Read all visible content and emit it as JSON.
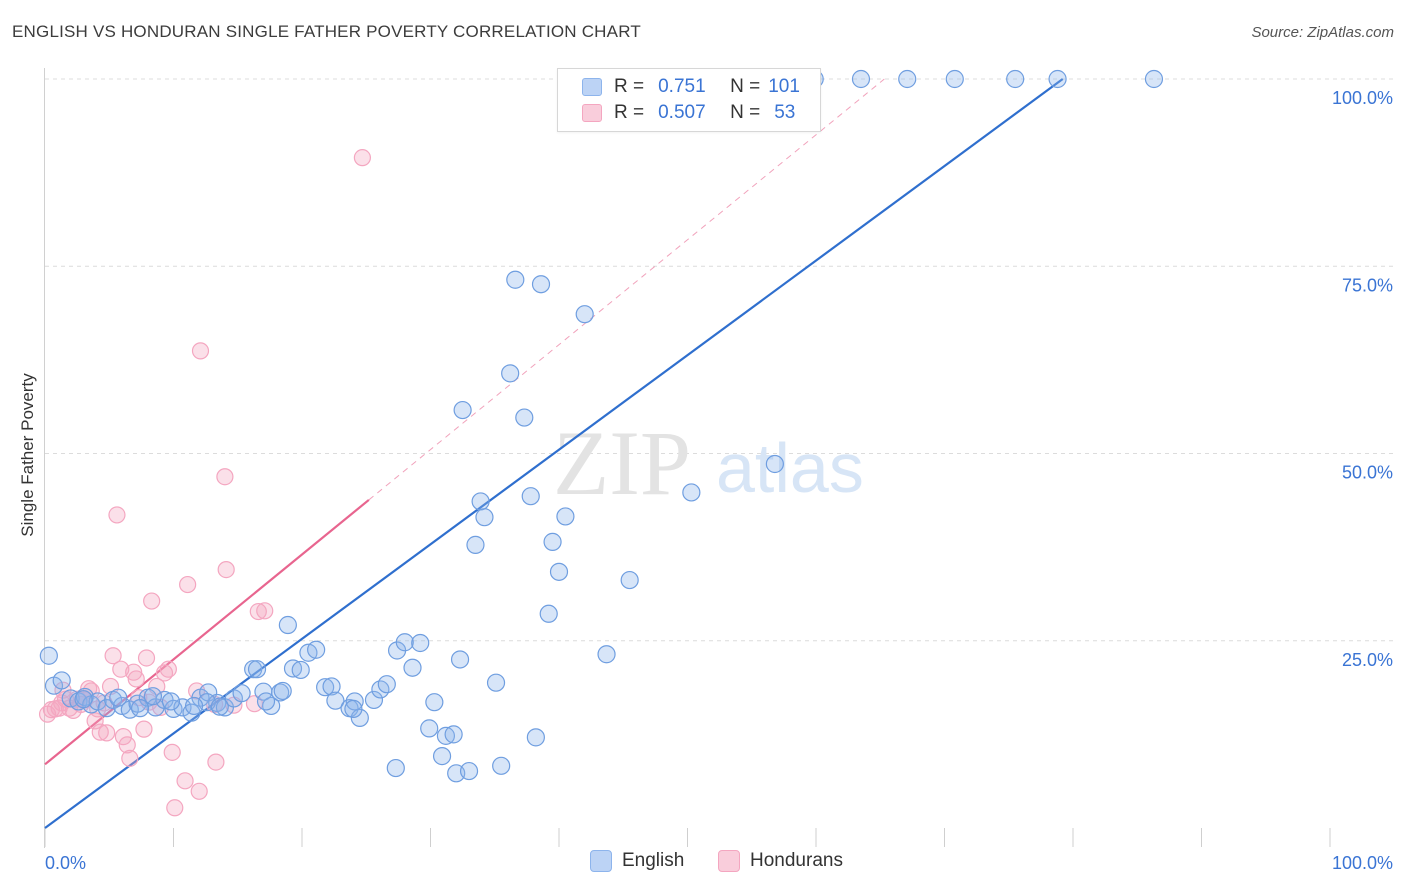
{
  "header": {
    "title": "ENGLISH VS HONDURAN SINGLE FATHER POVERTY CORRELATION CHART",
    "source": "Source: ZipAtlas.com"
  },
  "watermark": {
    "zip": "ZIP",
    "atlas": "atlas"
  },
  "colors": {
    "english": "#8db4ec",
    "english_line": "#2f6fce",
    "hondurans": "#f4a6c0",
    "hondurans_line": "#e8658f",
    "axis_label": "#3a74d4",
    "grid": "#dcdcdc"
  },
  "legend": {
    "rows": [
      {
        "r_label": "R =",
        "r_value": "0.751",
        "n_label": "N =",
        "n_value": "101"
      },
      {
        "r_label": "R =",
        "r_value": "0.507",
        "n_label": "N =",
        "n_value": "53"
      }
    ],
    "bottom": [
      "English",
      "Hondurans"
    ]
  },
  "chart_data": {
    "type": "scatter",
    "title": "ENGLISH VS HONDURAN SINGLE FATHER POVERTY CORRELATION CHART",
    "xlabel": "",
    "ylabel": "Single Father Poverty",
    "xlim": [
      0,
      100
    ],
    "ylim": [
      0,
      100
    ],
    "x_tick_labels": [
      "0.0%",
      "100.0%"
    ],
    "y_tick_labels": [
      "25.0%",
      "50.0%",
      "75.0%",
      "100.0%"
    ],
    "y_ticks": [
      25,
      50,
      75,
      100
    ],
    "grid": true,
    "legend_position": "top-center",
    "series": [
      {
        "name": "English",
        "stats": {
          "R": 0.751,
          "N": 101
        },
        "trend": {
          "x": [
            0,
            79.2
          ],
          "y": [
            0,
            100
          ]
        },
        "points": [
          [
            0.3,
            23
          ],
          [
            0.7,
            19
          ],
          [
            1.3,
            19.7
          ],
          [
            2.0,
            17.3
          ],
          [
            2.6,
            16.9
          ],
          [
            3.1,
            17.5
          ],
          [
            3.6,
            16.5
          ],
          [
            4.1,
            16.9
          ],
          [
            4.8,
            16.0
          ],
          [
            5.3,
            17.1
          ],
          [
            6.0,
            16.3
          ],
          [
            6.6,
            15.8
          ],
          [
            7.2,
            16.6
          ],
          [
            8.0,
            17.4
          ],
          [
            8.6,
            16.1
          ],
          [
            9.3,
            17.1
          ],
          [
            10.0,
            15.9
          ],
          [
            10.7,
            16.1
          ],
          [
            11.4,
            15.4
          ],
          [
            12.1,
            17.4
          ],
          [
            12.7,
            18.1
          ],
          [
            13.4,
            16.7
          ],
          [
            14.0,
            16.1
          ],
          [
            14.7,
            17.3
          ],
          [
            15.3,
            18.0
          ],
          [
            16.2,
            21.2
          ],
          [
            17.0,
            18.2
          ],
          [
            17.6,
            16.3
          ],
          [
            18.3,
            18.1
          ],
          [
            18.9,
            27.1
          ],
          [
            19.3,
            21.3
          ],
          [
            19.9,
            21.1
          ],
          [
            20.5,
            23.4
          ],
          [
            21.1,
            23.8
          ],
          [
            21.8,
            18.8
          ],
          [
            22.3,
            18.9
          ],
          [
            22.6,
            17.0
          ],
          [
            23.7,
            16.0
          ],
          [
            24.5,
            14.7
          ],
          [
            24.1,
            16.9
          ],
          [
            25.6,
            17.1
          ],
          [
            26.1,
            18.5
          ],
          [
            26.6,
            19.2
          ],
          [
            27.3,
            8.0
          ],
          [
            27.4,
            23.7
          ],
          [
            28.0,
            24.8
          ],
          [
            28.6,
            21.4
          ],
          [
            29.2,
            24.7
          ],
          [
            29.9,
            13.3
          ],
          [
            30.3,
            16.8
          ],
          [
            30.9,
            9.6
          ],
          [
            31.2,
            12.3
          ],
          [
            31.8,
            12.5
          ],
          [
            32.0,
            7.3
          ],
          [
            32.3,
            22.5
          ],
          [
            32.5,
            55.8
          ],
          [
            33.0,
            7.6
          ],
          [
            33.5,
            37.8
          ],
          [
            33.9,
            43.6
          ],
          [
            34.2,
            41.5
          ],
          [
            35.1,
            19.4
          ],
          [
            35.5,
            8.3
          ],
          [
            36.2,
            60.7
          ],
          [
            36.6,
            73.2
          ],
          [
            37.3,
            54.8
          ],
          [
            37.8,
            44.3
          ],
          [
            38.2,
            12.1
          ],
          [
            38.6,
            72.6
          ],
          [
            39.2,
            28.6
          ],
          [
            39.5,
            38.2
          ],
          [
            40.0,
            34.2
          ],
          [
            40.5,
            41.6
          ],
          [
            42.0,
            68.6
          ],
          [
            42.5,
            100
          ],
          [
            43.7,
            23.2
          ],
          [
            45.2,
            100
          ],
          [
            45.9,
            100
          ],
          [
            45.5,
            33.1
          ],
          [
            47.3,
            100
          ],
          [
            50.3,
            44.8
          ],
          [
            54.7,
            100
          ],
          [
            56.8,
            48.6
          ],
          [
            59.9,
            100
          ],
          [
            63.5,
            100
          ],
          [
            67.1,
            100
          ],
          [
            70.8,
            100
          ],
          [
            75.5,
            100
          ],
          [
            78.8,
            100
          ],
          [
            86.3,
            100
          ],
          [
            16.5,
            21.2
          ],
          [
            18.5,
            18.3
          ],
          [
            24.0,
            15.9
          ],
          [
            12.6,
            16.8
          ],
          [
            8.4,
            17.6
          ],
          [
            3.0,
            17.2
          ],
          [
            5.7,
            17.4
          ],
          [
            7.4,
            16.0
          ],
          [
            9.8,
            16.9
          ],
          [
            13.6,
            16.2
          ],
          [
            11.6,
            16.3
          ],
          [
            17.2,
            16.9
          ]
        ]
      },
      {
        "name": "Hondurans",
        "stats": {
          "R": 0.507,
          "N": 53
        },
        "trend": {
          "x": [
            0,
            25.2
          ],
          "y": [
            8.5,
            43.8
          ]
        },
        "points": [
          [
            0.2,
            15.2
          ],
          [
            0.5,
            15.8
          ],
          [
            0.8,
            15.9
          ],
          [
            1.1,
            16.0
          ],
          [
            1.3,
            16.7
          ],
          [
            1.6,
            17.2
          ],
          [
            1.9,
            16.0
          ],
          [
            2.2,
            15.7
          ],
          [
            2.5,
            17.2
          ],
          [
            2.8,
            16.5
          ],
          [
            3.1,
            17.1
          ],
          [
            3.4,
            18.6
          ],
          [
            3.6,
            18.3
          ],
          [
            3.9,
            14.3
          ],
          [
            4.1,
            15.9
          ],
          [
            4.3,
            12.8
          ],
          [
            4.6,
            16.7
          ],
          [
            4.8,
            12.7
          ],
          [
            5.1,
            18.9
          ],
          [
            5.3,
            23.0
          ],
          [
            5.6,
            41.8
          ],
          [
            5.9,
            21.2
          ],
          [
            6.1,
            12.2
          ],
          [
            6.4,
            11.1
          ],
          [
            6.6,
            9.3
          ],
          [
            6.9,
            20.8
          ],
          [
            7.1,
            19.9
          ],
          [
            7.3,
            17.4
          ],
          [
            7.7,
            13.2
          ],
          [
            7.9,
            22.7
          ],
          [
            8.1,
            16.8
          ],
          [
            8.3,
            30.3
          ],
          [
            8.7,
            18.9
          ],
          [
            9.0,
            16.1
          ],
          [
            9.3,
            20.7
          ],
          [
            9.6,
            21.2
          ],
          [
            9.9,
            10.1
          ],
          [
            10.1,
            2.7
          ],
          [
            10.9,
            6.3
          ],
          [
            11.1,
            32.5
          ],
          [
            11.8,
            18.3
          ],
          [
            12.0,
            4.9
          ],
          [
            12.1,
            63.7
          ],
          [
            13.2,
            16.5
          ],
          [
            13.3,
            8.8
          ],
          [
            14.0,
            46.9
          ],
          [
            14.1,
            34.5
          ],
          [
            14.7,
            16.4
          ],
          [
            16.3,
            16.6
          ],
          [
            16.6,
            28.9
          ],
          [
            17.1,
            29.0
          ],
          [
            24.7,
            89.5
          ],
          [
            1.4,
            18.4
          ]
        ]
      }
    ]
  }
}
